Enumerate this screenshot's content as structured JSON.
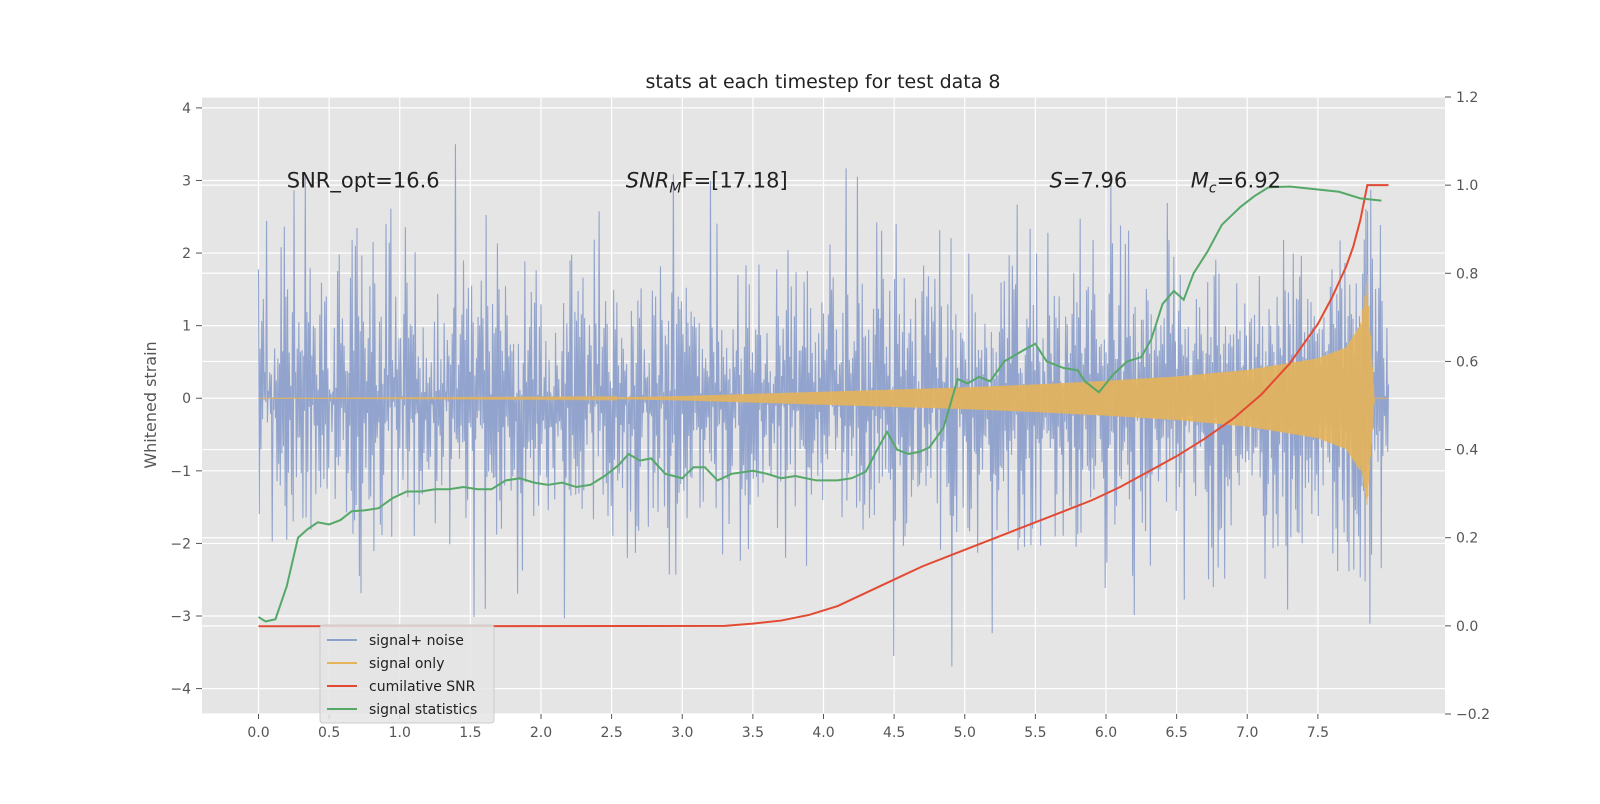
{
  "chart_data": {
    "type": "line",
    "title": "stats at each timestep for test data 8",
    "xlabel": "",
    "ylabel": "Whitened strain",
    "y2label": "",
    "xlim": [
      -0.4,
      8.4
    ],
    "ylim": [
      -4.35,
      4.15
    ],
    "y2lim": [
      -0.2,
      1.2
    ],
    "xticks": [
      "0.0",
      "0.5",
      "1.0",
      "1.5",
      "2.0",
      "2.5",
      "3.0",
      "3.5",
      "4.0",
      "4.5",
      "5.0",
      "5.5",
      "6.0",
      "6.5",
      "7.0",
      "7.5"
    ],
    "yticks": [
      "4",
      "3",
      "2",
      "1",
      "0",
      "−1",
      "−2",
      "−3",
      "−4"
    ],
    "y2ticks": [
      "1.2",
      "1.0",
      "0.8",
      "0.6",
      "0.4",
      "0.2",
      "0.0",
      "−0.2"
    ],
    "grid": true,
    "legend_position": "lower-left",
    "annotations": [
      {
        "id": "snr_opt",
        "text": "SNR_opt=16.6",
        "x": 0.2,
        "y": 3.0
      },
      {
        "id": "snr_mf",
        "text_main": "SNR",
        "text_sub": "M",
        "text_rest": "F=[17.18]",
        "x": 2.6,
        "y": 3.0
      },
      {
        "id": "s_stat",
        "text_main": "S",
        "text_rest": "=7.96",
        "x": 5.6,
        "y": 3.0
      },
      {
        "id": "mc",
        "text_main": "M",
        "text_sub": "c",
        "text_rest": "=6.92",
        "x": 6.6,
        "y": 3.0
      }
    ],
    "series": [
      {
        "name": "signal+ noise",
        "color": "#8da0cb",
        "axis": "left",
        "kind": "noise",
        "x_range": [
          0.0,
          8.0
        ],
        "typical_range": [
          -1.9,
          1.9
        ],
        "max": 3.78,
        "min": -3.97
      },
      {
        "name": "signal only",
        "color": "#e5b45a",
        "axis": "left",
        "kind": "chirp",
        "envelope_x": [
          0.0,
          2.5,
          3.0,
          3.5,
          4.0,
          4.5,
          5.0,
          5.5,
          6.0,
          6.5,
          7.0,
          7.5,
          7.7,
          7.8,
          7.85,
          7.9
        ],
        "envelope_y": [
          0.0,
          0.01,
          0.03,
          0.06,
          0.09,
          0.12,
          0.15,
          0.19,
          0.24,
          0.3,
          0.39,
          0.55,
          0.7,
          1.0,
          1.75,
          0.0
        ]
      },
      {
        "name": "cumilative SNR",
        "color": "#e24a33",
        "axis": "right",
        "x": [
          0.0,
          3.3,
          3.5,
          3.7,
          3.9,
          4.1,
          4.3,
          4.5,
          4.7,
          4.9,
          5.1,
          5.3,
          5.5,
          5.7,
          5.9,
          6.1,
          6.3,
          6.5,
          6.7,
          6.9,
          7.1,
          7.3,
          7.5,
          7.6,
          7.7,
          7.75,
          7.8,
          7.85,
          7.9,
          8.0
        ],
        "y": [
          -0.001,
          0.0,
          0.005,
          0.012,
          0.025,
          0.045,
          0.075,
          0.105,
          0.135,
          0.16,
          0.185,
          0.21,
          0.235,
          0.26,
          0.285,
          0.315,
          0.35,
          0.385,
          0.425,
          0.47,
          0.525,
          0.595,
          0.685,
          0.745,
          0.815,
          0.86,
          0.92,
          1.0,
          1.0,
          1.0
        ]
      },
      {
        "name": "signal statistics",
        "color": "#55a868",
        "axis": "right",
        "x": [
          0.0,
          0.05,
          0.12,
          0.2,
          0.28,
          0.35,
          0.42,
          0.5,
          0.58,
          0.66,
          0.75,
          0.85,
          0.95,
          1.05,
          1.15,
          1.25,
          1.35,
          1.45,
          1.55,
          1.65,
          1.75,
          1.85,
          1.95,
          2.05,
          2.15,
          2.25,
          2.35,
          2.45,
          2.55,
          2.62,
          2.7,
          2.78,
          2.88,
          3.0,
          3.08,
          3.16,
          3.25,
          3.35,
          3.5,
          3.6,
          3.7,
          3.8,
          3.95,
          4.1,
          4.2,
          4.3,
          4.38,
          4.45,
          4.52,
          4.6,
          4.68,
          4.75,
          4.85,
          4.95,
          5.02,
          5.1,
          5.18,
          5.28,
          5.36,
          5.44,
          5.5,
          5.58,
          5.7,
          5.8,
          5.85,
          5.95,
          6.05,
          6.15,
          6.25,
          6.32,
          6.4,
          6.48,
          6.55,
          6.62,
          6.72,
          6.82,
          6.95,
          7.05,
          7.15,
          7.3,
          7.5,
          7.65,
          7.8,
          7.95
        ],
        "y": [
          0.02,
          0.01,
          0.015,
          0.09,
          0.2,
          0.22,
          0.235,
          0.23,
          0.24,
          0.26,
          0.262,
          0.267,
          0.29,
          0.305,
          0.305,
          0.31,
          0.31,
          0.315,
          0.31,
          0.31,
          0.33,
          0.335,
          0.325,
          0.32,
          0.325,
          0.315,
          0.32,
          0.34,
          0.365,
          0.39,
          0.375,
          0.38,
          0.345,
          0.335,
          0.36,
          0.36,
          0.33,
          0.345,
          0.352,
          0.345,
          0.335,
          0.34,
          0.33,
          0.33,
          0.335,
          0.35,
          0.4,
          0.44,
          0.4,
          0.39,
          0.395,
          0.405,
          0.45,
          0.56,
          0.55,
          0.565,
          0.555,
          0.6,
          0.615,
          0.63,
          0.64,
          0.6,
          0.585,
          0.58,
          0.555,
          0.53,
          0.57,
          0.6,
          0.61,
          0.65,
          0.73,
          0.76,
          0.74,
          0.8,
          0.85,
          0.91,
          0.95,
          0.975,
          0.995,
          0.997,
          0.99,
          0.985,
          0.97,
          0.965
        ]
      }
    ]
  }
}
